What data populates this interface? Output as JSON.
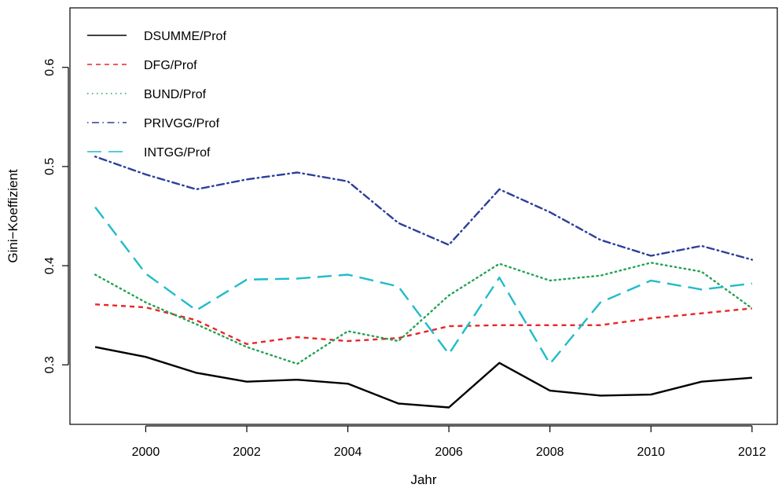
{
  "chart_data": {
    "type": "line",
    "xlabel": "Jahr",
    "ylabel": "Gini−Koeffizient",
    "xlim": [
      1998.5,
      2012.5
    ],
    "ylim": [
      0.24,
      0.66
    ],
    "x_ticks": [
      2000,
      2002,
      2004,
      2006,
      2008,
      2010,
      2012
    ],
    "y_ticks": [
      0.3,
      0.4,
      0.5,
      0.6
    ],
    "grid": false,
    "legend_position": "top-left",
    "x": [
      1999,
      2000,
      2001,
      2002,
      2003,
      2004,
      2005,
      2006,
      2007,
      2008,
      2009,
      2010,
      2011,
      2012
    ],
    "series": [
      {
        "name": "DSUMME/Prof",
        "color": "#000000",
        "line_style": "solid",
        "values": [
          0.318,
          0.308,
          0.292,
          0.283,
          0.285,
          0.281,
          0.261,
          0.257,
          0.302,
          0.274,
          0.269,
          0.27,
          0.283,
          0.287
        ]
      },
      {
        "name": "DFG/Prof",
        "color": "#e8262a",
        "line_style": "dashed",
        "values": [
          0.361,
          0.358,
          0.345,
          0.321,
          0.328,
          0.324,
          0.327,
          0.339,
          0.34,
          0.34,
          0.34,
          0.347,
          0.352,
          0.357
        ]
      },
      {
        "name": "BUND/Prof",
        "color": "#22a354",
        "line_style": "dotted",
        "values": [
          0.391,
          0.363,
          0.341,
          0.318,
          0.301,
          0.334,
          0.324,
          0.37,
          0.402,
          0.385,
          0.39,
          0.403,
          0.394,
          0.357
        ]
      },
      {
        "name": "PRIVGG/Prof",
        "color": "#2c3f99",
        "line_style": "dotdash",
        "values": [
          0.51,
          0.492,
          0.477,
          0.487,
          0.494,
          0.485,
          0.443,
          0.421,
          0.477,
          0.454,
          0.426,
          0.41,
          0.42,
          0.406
        ]
      },
      {
        "name": "INTGG/Prof",
        "color": "#1fbccb",
        "line_style": "longdash",
        "values": [
          0.459,
          0.392,
          0.355,
          0.386,
          0.387,
          0.391,
          0.379,
          0.311,
          0.388,
          0.301,
          0.363,
          0.385,
          0.376,
          0.382
        ]
      }
    ]
  }
}
